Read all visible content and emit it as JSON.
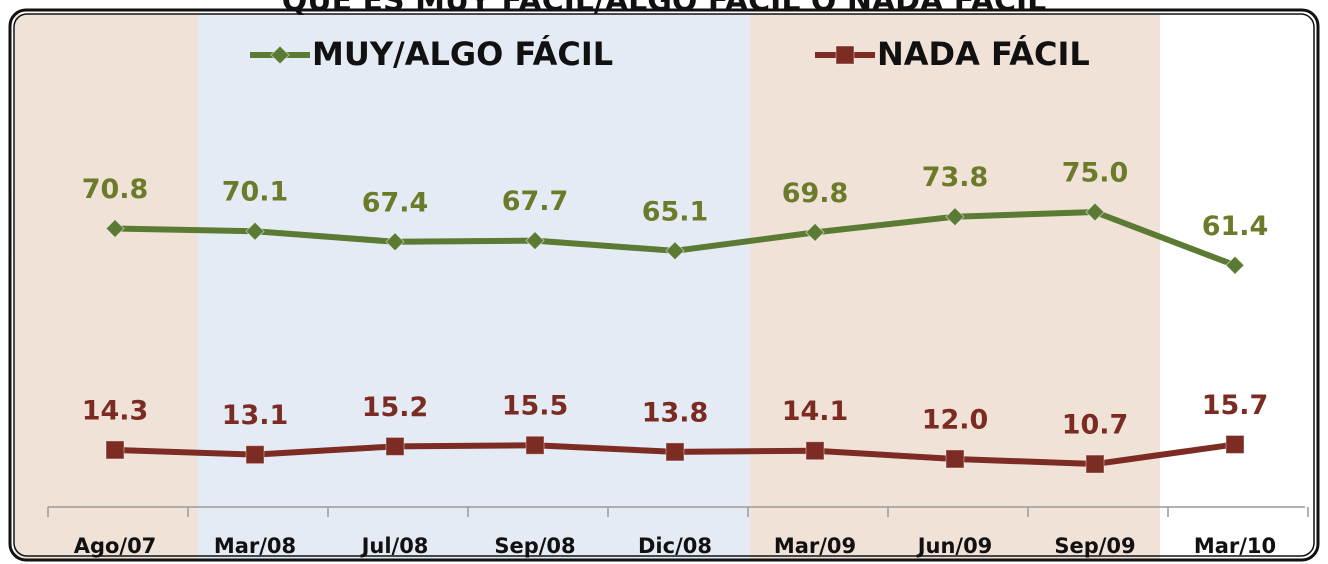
{
  "chart_data": {
    "type": "line",
    "title": "QUÉ ES MUY FÁCIL/ALGO FÁCIL O NADA FÁCIL",
    "categories": [
      "Ago/07",
      "Mar/08",
      "Jul/08",
      "Sep/08",
      "Dic/08",
      "Mar/09",
      "Jun/09",
      "Sep/09",
      "Mar/10"
    ],
    "series": [
      {
        "name": "MUY/ALGO FÁCIL",
        "color": "#5b7a34",
        "label_color": "#6b7b2a",
        "marker": "diamond",
        "values": [
          70.8,
          70.1,
          67.4,
          67.7,
          65.1,
          69.8,
          73.8,
          75.0,
          61.4
        ],
        "value_labels": [
          "70.8",
          "70.1",
          "67.4",
          "67.7",
          "65.1",
          "69.8",
          "73.8",
          "75.0",
          "61.4"
        ]
      },
      {
        "name": "NADA FÁCIL",
        "color": "#7d2c24",
        "label_color": "#7a2b22",
        "marker": "square",
        "values": [
          14.3,
          13.1,
          15.2,
          15.5,
          13.8,
          14.1,
          12.0,
          10.7,
          15.7
        ],
        "value_labels": [
          "14.3",
          "13.1",
          "15.2",
          "15.5",
          "13.8",
          "14.1",
          "12.0",
          "10.7",
          "15.7"
        ]
      }
    ],
    "ylim": [
      0,
      125
    ],
    "legend": "top"
  }
}
